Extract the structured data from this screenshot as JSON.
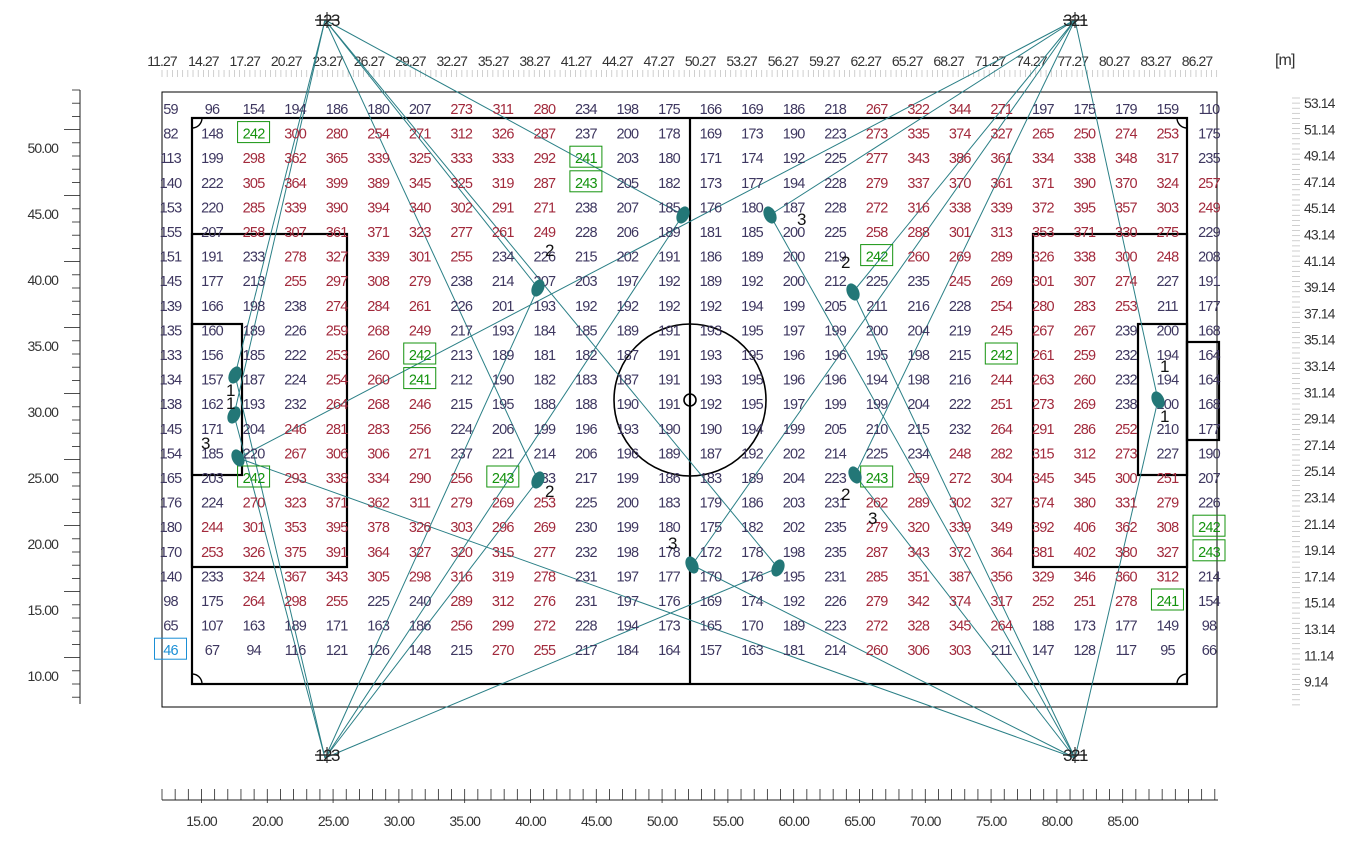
{
  "unit_label": "[m]",
  "top_axis_labels": [
    "11.27",
    "14.27",
    "17.27",
    "20.27",
    "23.27",
    "26.27",
    "29.27",
    "32.27",
    "35.27",
    "38.27",
    "41.27",
    "44.27",
    "47.27",
    "50.27",
    "53.27",
    "56.27",
    "59.27",
    "62.27",
    "65.27",
    "68.27",
    "71.27",
    "74.27",
    "77.27",
    "80.27",
    "83.27",
    "86.27"
  ],
  "bottom_axis_labels": [
    "15.00",
    "20.00",
    "25.00",
    "30.00",
    "35.00",
    "40.00",
    "45.00",
    "50.00",
    "55.00",
    "60.00",
    "65.00",
    "70.00",
    "75.00",
    "80.00",
    "85.00"
  ],
  "left_axis_labels": [
    "50.00",
    "45.00",
    "40.00",
    "35.00",
    "30.00",
    "25.00",
    "20.00",
    "15.00",
    "10.00"
  ],
  "right_axis_labels": [
    "53.14",
    "51.14",
    "49.14",
    "47.14",
    "45.14",
    "43.14",
    "41.14",
    "39.14",
    "37.14",
    "35.14",
    "33.14",
    "31.14",
    "29.14",
    "27.14",
    "25.14",
    "23.14",
    "21.14",
    "19.14",
    "17.14",
    "15.14",
    "13.14",
    "11.14",
    "9.14"
  ],
  "poles": [
    {
      "label": "123",
      "position": "top-left"
    },
    {
      "label": "321",
      "position": "top-right"
    },
    {
      "label": "123",
      "position": "bottom-left"
    },
    {
      "label": "321",
      "position": "bottom-right"
    }
  ],
  "luminaire_group_labels": [
    "1",
    "1",
    "3",
    "2",
    "2",
    "3",
    "2",
    "2",
    "3",
    "3",
    "1",
    "1"
  ],
  "grid_values": [
    [
      59,
      96,
      154,
      194,
      186,
      180,
      207,
      273,
      311,
      280,
      234,
      198,
      175,
      166,
      169,
      186,
      218,
      267,
      322,
      344,
      271,
      197,
      175,
      179,
      159,
      110
    ],
    [
      82,
      148,
      242,
      300,
      280,
      254,
      271,
      312,
      326,
      287,
      237,
      200,
      178,
      169,
      173,
      190,
      223,
      273,
      335,
      374,
      327,
      265,
      250,
      274,
      253,
      175
    ],
    [
      113,
      199,
      298,
      362,
      365,
      339,
      325,
      333,
      333,
      292,
      241,
      203,
      180,
      171,
      174,
      192,
      225,
      277,
      343,
      386,
      361,
      334,
      338,
      348,
      317,
      235
    ],
    [
      140,
      222,
      305,
      364,
      399,
      389,
      345,
      325,
      319,
      287,
      243,
      205,
      182,
      173,
      177,
      194,
      228,
      279,
      337,
      370,
      361,
      371,
      390,
      370,
      324,
      257
    ],
    [
      153,
      220,
      285,
      339,
      390,
      394,
      340,
      302,
      291,
      271,
      238,
      207,
      185,
      176,
      180,
      187,
      228,
      272,
      316,
      338,
      339,
      372,
      395,
      357,
      303,
      249
    ],
    [
      155,
      207,
      258,
      307,
      361,
      371,
      323,
      277,
      261,
      249,
      228,
      206,
      189,
      181,
      185,
      200,
      225,
      258,
      288,
      301,
      313,
      353,
      371,
      330,
      275,
      229
    ],
    [
      151,
      191,
      233,
      278,
      327,
      339,
      301,
      255,
      234,
      226,
      215,
      202,
      191,
      186,
      189,
      200,
      219,
      242,
      260,
      269,
      289,
      326,
      338,
      300,
      248,
      208
    ],
    [
      145,
      177,
      213,
      255,
      297,
      308,
      279,
      238,
      214,
      207,
      203,
      197,
      192,
      189,
      192,
      200,
      212,
      225,
      235,
      245,
      269,
      301,
      307,
      274,
      227,
      191
    ],
    [
      139,
      166,
      198,
      238,
      274,
      284,
      261,
      226,
      201,
      193,
      192,
      192,
      192,
      192,
      194,
      199,
      205,
      211,
      216,
      228,
      254,
      280,
      283,
      253,
      211,
      177
    ],
    [
      135,
      160,
      189,
      226,
      259,
      268,
      249,
      217,
      193,
      184,
      185,
      189,
      191,
      193,
      195,
      197,
      199,
      200,
      204,
      219,
      245,
      267,
      267,
      239,
      200,
      168
    ],
    [
      133,
      156,
      185,
      222,
      253,
      260,
      242,
      213,
      189,
      181,
      182,
      187,
      191,
      193,
      195,
      196,
      196,
      195,
      198,
      215,
      242,
      261,
      259,
      232,
      194,
      164
    ],
    [
      134,
      157,
      187,
      224,
      254,
      260,
      241,
      212,
      190,
      182,
      183,
      187,
      191,
      193,
      195,
      196,
      196,
      194,
      198,
      216,
      244,
      263,
      260,
      232,
      194,
      164
    ],
    [
      138,
      162,
      193,
      232,
      264,
      268,
      246,
      215,
      195,
      188,
      188,
      190,
      191,
      192,
      195,
      197,
      199,
      199,
      204,
      222,
      251,
      273,
      269,
      238,
      200,
      168
    ],
    [
      145,
      171,
      204,
      246,
      281,
      283,
      256,
      224,
      206,
      199,
      196,
      193,
      190,
      190,
      194,
      199,
      205,
      210,
      215,
      232,
      264,
      291,
      286,
      252,
      210,
      177
    ],
    [
      154,
      185,
      220,
      267,
      306,
      306,
      271,
      237,
      221,
      214,
      206,
      196,
      189,
      187,
      192,
      202,
      214,
      225,
      234,
      248,
      282,
      315,
      312,
      273,
      227,
      190
    ],
    [
      165,
      203,
      242,
      293,
      338,
      334,
      290,
      256,
      243,
      233,
      217,
      199,
      186,
      183,
      189,
      204,
      223,
      243,
      259,
      272,
      304,
      345,
      345,
      300,
      251,
      207
    ],
    [
      176,
      224,
      270,
      323,
      371,
      362,
      311,
      279,
      269,
      253,
      225,
      200,
      183,
      179,
      186,
      203,
      231,
      262,
      289,
      302,
      327,
      374,
      380,
      331,
      279,
      226
    ],
    [
      180,
      244,
      301,
      353,
      395,
      378,
      326,
      303,
      296,
      269,
      230,
      199,
      180,
      175,
      182,
      202,
      235,
      279,
      320,
      339,
      349,
      392,
      406,
      362,
      308,
      242
    ],
    [
      170,
      253,
      326,
      375,
      391,
      364,
      327,
      320,
      315,
      277,
      232,
      198,
      178,
      172,
      178,
      198,
      235,
      287,
      343,
      372,
      364,
      381,
      402,
      380,
      327,
      243
    ],
    [
      140,
      233,
      324,
      367,
      343,
      305,
      298,
      316,
      319,
      278,
      231,
      197,
      177,
      170,
      176,
      195,
      231,
      285,
      351,
      387,
      356,
      329,
      346,
      360,
      312,
      214
    ],
    [
      98,
      175,
      264,
      298,
      255,
      225,
      240,
      289,
      312,
      276,
      231,
      197,
      176,
      169,
      174,
      192,
      226,
      279,
      342,
      374,
      317,
      252,
      251,
      278,
      241,
      154
    ],
    [
      65,
      107,
      163,
      189,
      171,
      163,
      186,
      256,
      299,
      272,
      228,
      194,
      173,
      165,
      170,
      189,
      223,
      272,
      328,
      345,
      264,
      188,
      173,
      177,
      149,
      98
    ],
    [
      46,
      67,
      94,
      116,
      121,
      126,
      148,
      215,
      270,
      255,
      217,
      184,
      164,
      157,
      163,
      181,
      214,
      260,
      306,
      303,
      211,
      147,
      128,
      117,
      95,
      66
    ]
  ],
  "boxed_min": [
    [
      22,
      0
    ]
  ],
  "boxed_max": [
    [
      1,
      2
    ],
    [
      2,
      10
    ],
    [
      3,
      10
    ],
    [
      6,
      17
    ],
    [
      10,
      6
    ],
    [
      10,
      20
    ],
    [
      11,
      6
    ],
    [
      15,
      2
    ],
    [
      15,
      8
    ],
    [
      15,
      17
    ],
    [
      17,
      25
    ],
    [
      18,
      25
    ],
    [
      20,
      24
    ]
  ],
  "colors": {
    "low_value": "#3e3760",
    "high_value": "#a22a3c",
    "max_marker": "#14930e",
    "min_marker": "#1a8fd6",
    "aim_lines": "#2a7f86",
    "luminaire": "#237777",
    "field_lines": "#000000"
  }
}
